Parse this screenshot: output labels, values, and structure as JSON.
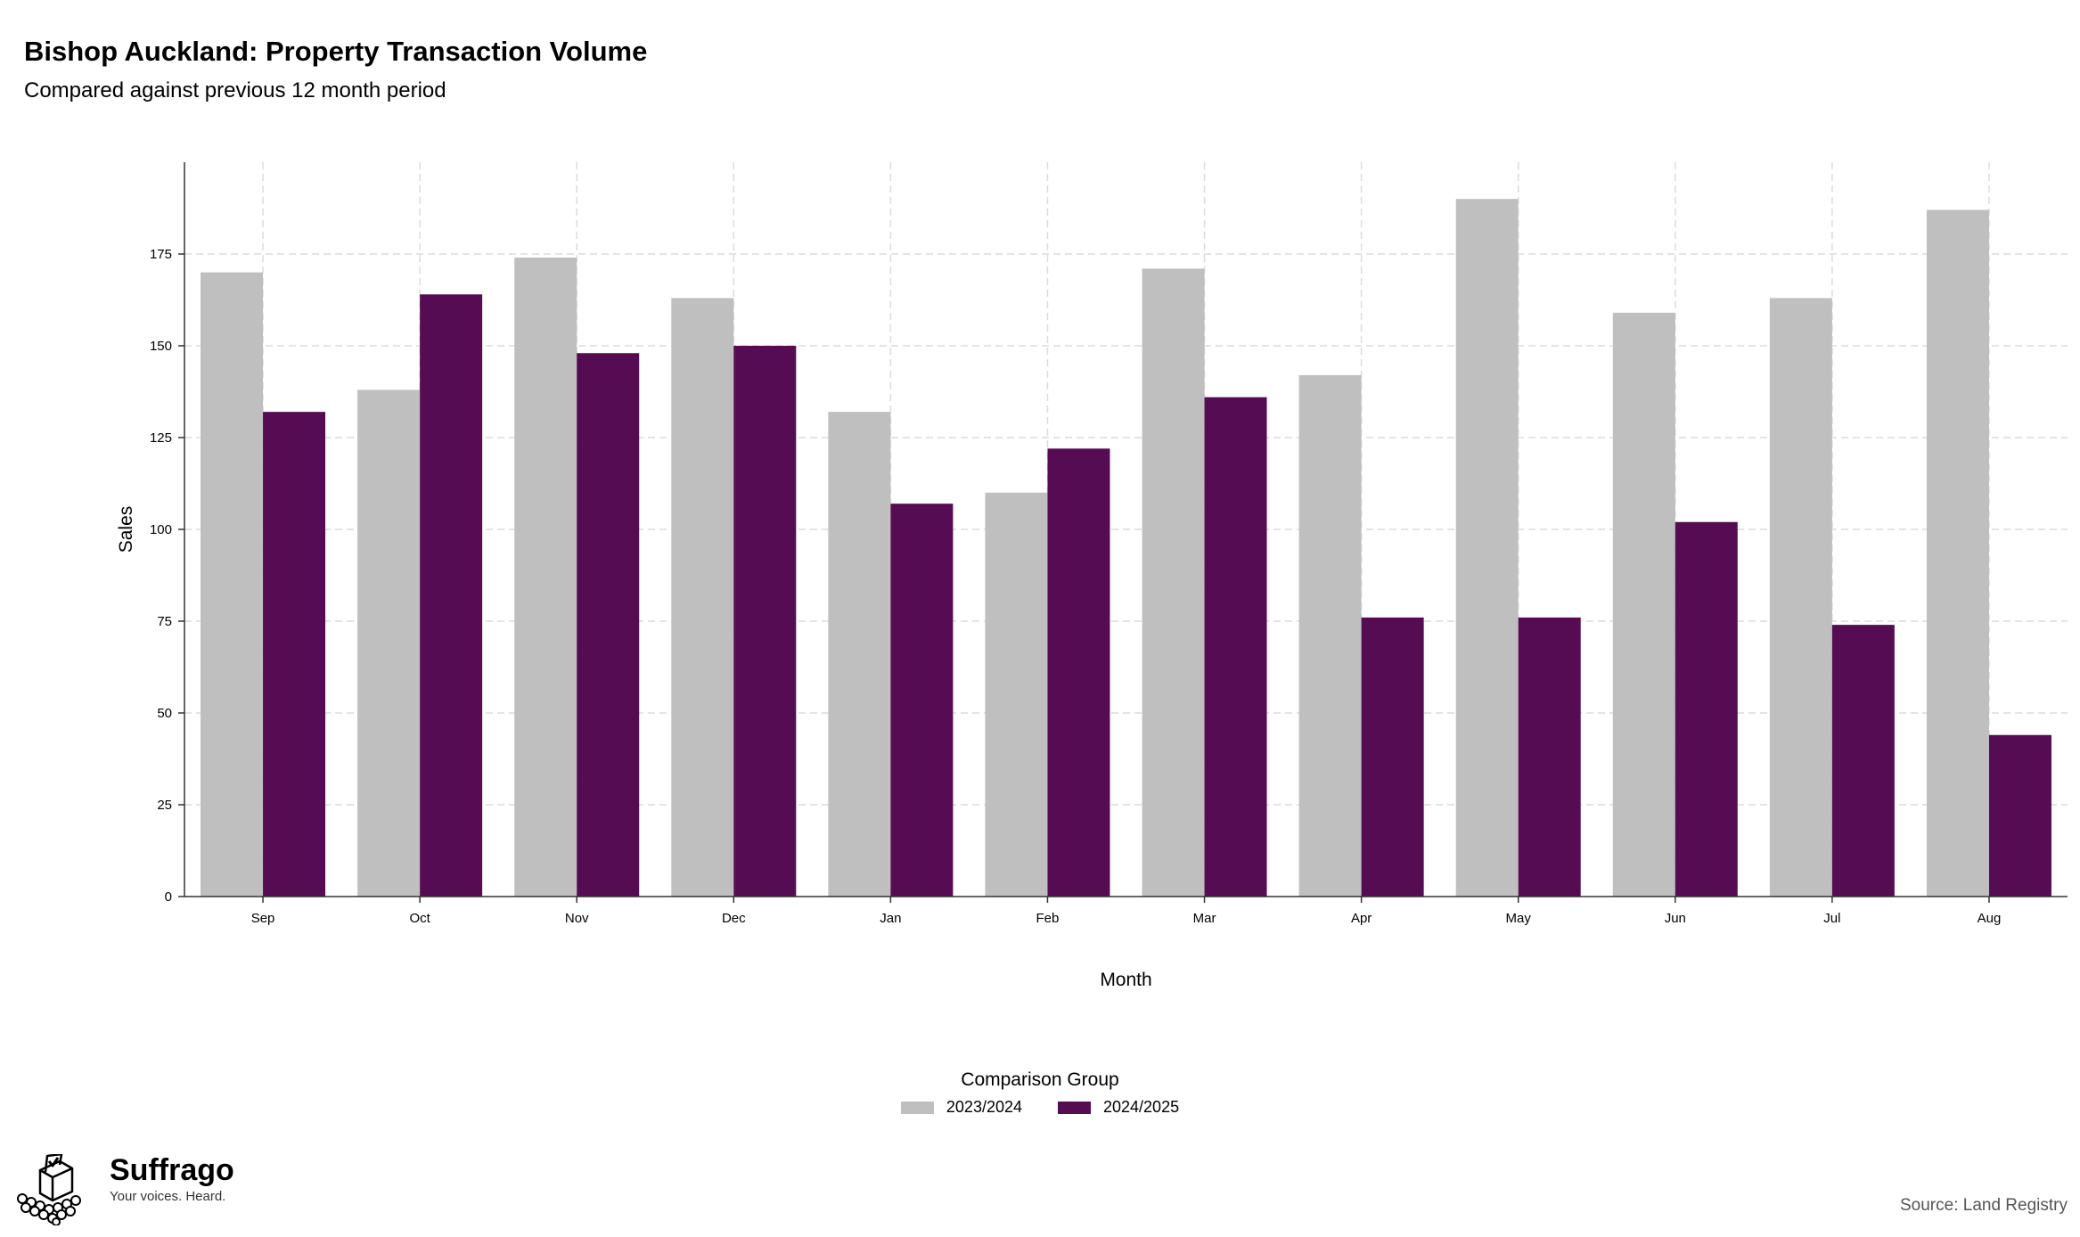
{
  "header": {
    "title": "Bishop Auckland: Property Transaction Volume",
    "subtitle": "Compared against previous 12 month period"
  },
  "chart_data": {
    "type": "bar",
    "categories": [
      "Sep",
      "Oct",
      "Nov",
      "Dec",
      "Jan",
      "Feb",
      "Mar",
      "Apr",
      "May",
      "Jun",
      "Jul",
      "Aug"
    ],
    "series": [
      {
        "name": "2023/2024",
        "color": "#bfbfbf",
        "values": [
          170,
          138,
          174,
          163,
          132,
          110,
          171,
          142,
          190,
          159,
          163,
          187
        ]
      },
      {
        "name": "2024/2025",
        "color": "#560c52",
        "values": [
          132,
          164,
          148,
          150,
          107,
          122,
          136,
          76,
          76,
          102,
          74,
          44
        ]
      }
    ],
    "xlabel": "Month",
    "ylabel": "Sales",
    "ylim": [
      0,
      200
    ],
    "yticks": [
      0,
      25,
      50,
      75,
      100,
      125,
      150,
      175
    ],
    "grid": true,
    "legend_title": "Comparison Group",
    "legend_position": "bottom"
  },
  "brand": {
    "name": "Suffrago",
    "tagline": "Your voices. Heard.",
    "icon": "ballot-box-icon"
  },
  "footer": {
    "source": "Source: Land Registry"
  }
}
